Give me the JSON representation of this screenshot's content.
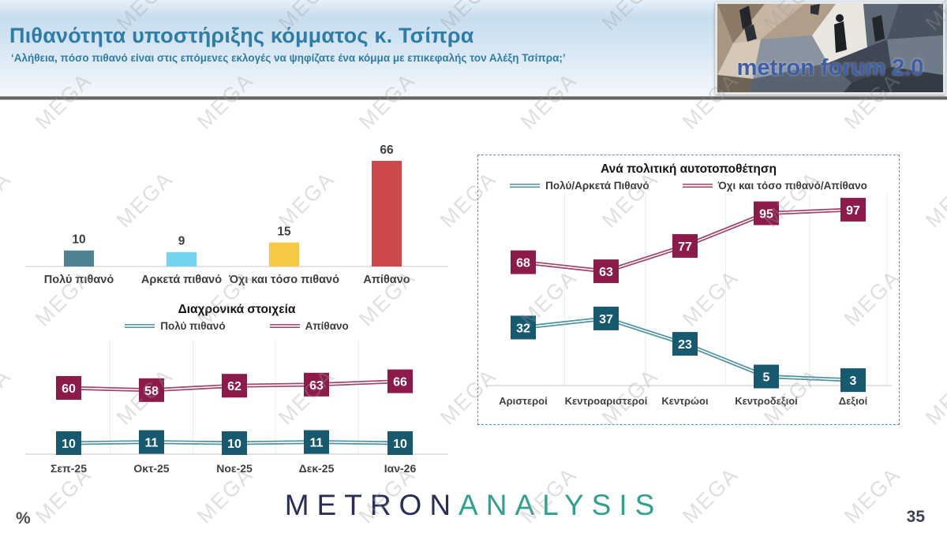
{
  "header": {
    "title": "Πιθανότητα υποστήριξης κόμματος κ. Τσίπρα",
    "subtitle": "‘Αλήθεια, πόσο πιθανό είναι στις επόμενες εκλογές να ψηφίζατε ένα κόμμα με επικεφαλής τον Αλέξη Τσίπρα;’",
    "logo_text": "metron forum 2.0"
  },
  "footer": {
    "percent_label": "%",
    "page_number": "35",
    "brand_part1": "METRON",
    "brand_part2": "ANALYSIS"
  },
  "watermark": {
    "text": "MEGA"
  },
  "colors": {
    "title_teal": "#2e7da8",
    "marker_teal": "#175a70",
    "marker_maroon": "#8c1a4b",
    "line_teal": "#4e93a2",
    "line_maroon": "#a2436b",
    "panel_border": "#4f98a8"
  },
  "chart_data": [
    {
      "id": "likelihood-bars",
      "type": "bar",
      "title": "",
      "categories": [
        "Πολύ πιθανό",
        "Αρκετά πιθανό",
        "Όχι και τόσο πιθανό",
        "Απίθανο"
      ],
      "values": [
        10,
        9,
        15,
        66
      ],
      "colors": [
        "#4e8191",
        "#74d4f0",
        "#f7c843",
        "#cd4a4c"
      ],
      "ylim": [
        0,
        70
      ],
      "grid": false,
      "data_labels": true
    },
    {
      "id": "trend-over-time",
      "type": "line",
      "title": "Διαχρονικά στοιχεία",
      "categories": [
        "Σεπ-25",
        "Οκτ-25",
        "Νοε-25",
        "Δεκ-25",
        "Ιαν-26"
      ],
      "series": [
        {
          "name": "Πολύ πιθανό",
          "values": [
            10,
            11,
            10,
            11,
            10
          ],
          "color": "#175a70",
          "line_color": "#4e93a2"
        },
        {
          "name": "Απίθανο",
          "values": [
            60,
            58,
            62,
            63,
            66
          ],
          "color": "#8c1a4b",
          "line_color": "#a2436b"
        }
      ],
      "ylim": [
        0,
        100
      ],
      "legend_position": "top",
      "grid": "vertical",
      "data_labels": true
    },
    {
      "id": "by-political-self-placement",
      "type": "line",
      "title": "Ανά πολιτική αυτοτοποθέτηση",
      "categories": [
        "Αριστεροί",
        "Κεντροαριστεροί",
        "Κεντρώοι",
        "Κεντροδεξιοί",
        "Δεξιοί"
      ],
      "series": [
        {
          "name": "Πολύ/Αρκετά Πιθανό",
          "values": [
            32,
            37,
            23,
            5,
            3
          ],
          "color": "#175a70",
          "line_color": "#4e93a2"
        },
        {
          "name": "Όχι και τόσο πιθανό/Απίθανο",
          "values": [
            68,
            63,
            77,
            95,
            97
          ],
          "color": "#8c1a4b",
          "line_color": "#a2436b"
        }
      ],
      "ylim": [
        0,
        100
      ],
      "legend_position": "top",
      "grid": "vertical",
      "data_labels": true
    }
  ]
}
